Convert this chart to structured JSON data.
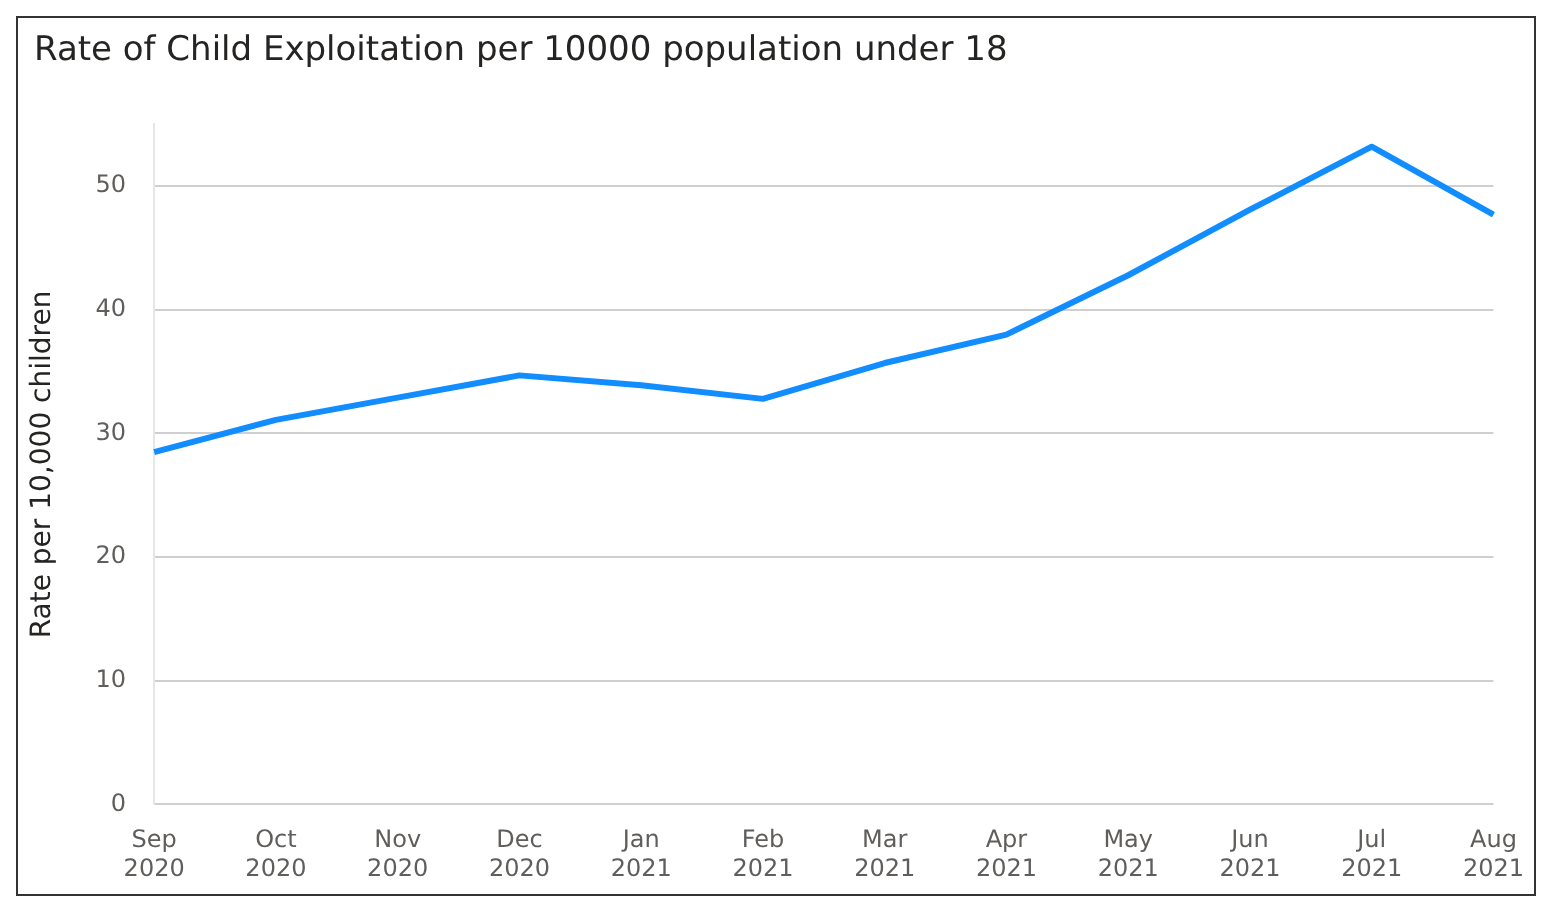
{
  "chart_data": {
    "type": "line",
    "title": "Rate of Child Exploitation per 10000 population under 18",
    "ylabel": "Rate per 10,000 children",
    "categories": [
      "Sep 2020",
      "Oct 2020",
      "Nov 2020",
      "Dec 2020",
      "Jan 2021",
      "Feb 2021",
      "Mar 2021",
      "Apr 2021",
      "May 2021",
      "Jun 2021",
      "Jul 2021",
      "Aug 2021"
    ],
    "series": [
      {
        "color": "#118dff",
        "values": [
          28.5,
          31.1,
          32.9,
          34.7,
          33.9,
          32.8,
          35.7,
          38.0,
          42.8,
          48.1,
          53.2,
          47.7
        ]
      }
    ],
    "ylim": [
      0,
      55
    ],
    "yticks": [
      0,
      10,
      20,
      30,
      40,
      50
    ],
    "grid": "y",
    "legend": false,
    "marker": "none",
    "line_style": "solid"
  }
}
